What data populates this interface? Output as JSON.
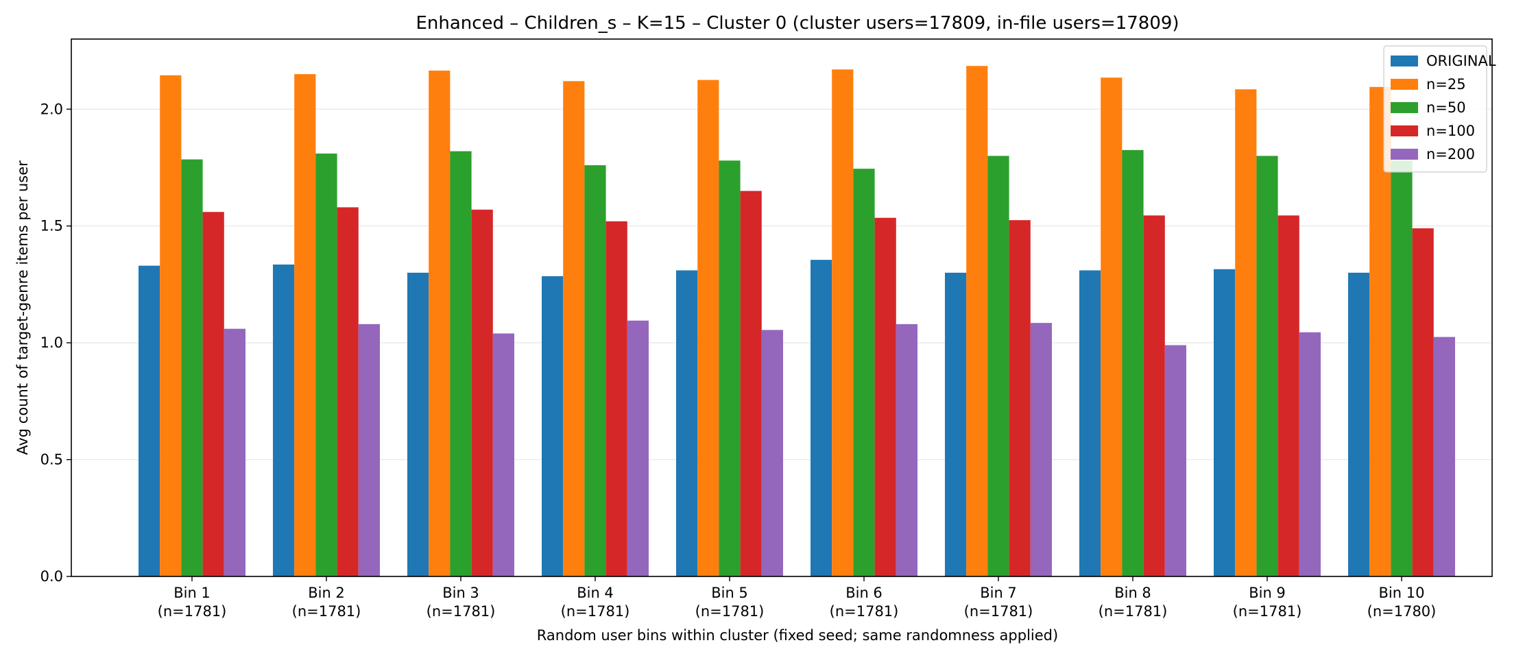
{
  "chart_data": {
    "type": "bar",
    "title": "Enhanced – Children_s – K=15 – Cluster 0 (cluster users=17809, in-file users=17809)",
    "xlabel": "Random user bins within cluster (fixed seed; same randomness applied)",
    "ylabel": "Avg count of target-genre items per user",
    "categories": [
      [
        "Bin 1",
        "(n=1781)"
      ],
      [
        "Bin 2",
        "(n=1781)"
      ],
      [
        "Bin 3",
        "(n=1781)"
      ],
      [
        "Bin 4",
        "(n=1781)"
      ],
      [
        "Bin 5",
        "(n=1781)"
      ],
      [
        "Bin 6",
        "(n=1781)"
      ],
      [
        "Bin 7",
        "(n=1781)"
      ],
      [
        "Bin 8",
        "(n=1781)"
      ],
      [
        "Bin 9",
        "(n=1781)"
      ],
      [
        "Bin 10",
        "(n=1780)"
      ]
    ],
    "ylim": [
      0,
      2.3
    ],
    "yticks": [
      0.0,
      0.5,
      1.0,
      1.5,
      2.0
    ],
    "ytick_labels": [
      "0.0",
      "0.5",
      "1.0",
      "1.5",
      "2.0"
    ],
    "grid": "horizontal",
    "legend_position": "top-right",
    "series": [
      {
        "name": "ORIGINAL",
        "color": "#1f77b4",
        "values": [
          1.33,
          1.335,
          1.3,
          1.285,
          1.31,
          1.355,
          1.3,
          1.31,
          1.315,
          1.3
        ]
      },
      {
        "name": "n=25",
        "color": "#ff7f0e",
        "values": [
          2.145,
          2.15,
          2.165,
          2.12,
          2.125,
          2.17,
          2.185,
          2.135,
          2.085,
          2.095
        ]
      },
      {
        "name": "n=50",
        "color": "#2ca02c",
        "values": [
          1.785,
          1.81,
          1.82,
          1.76,
          1.78,
          1.745,
          1.8,
          1.825,
          1.8,
          1.78
        ]
      },
      {
        "name": "n=100",
        "color": "#d62728",
        "values": [
          1.56,
          1.58,
          1.57,
          1.52,
          1.65,
          1.535,
          1.525,
          1.545,
          1.545,
          1.49
        ]
      },
      {
        "name": "n=200",
        "color": "#9467bd",
        "values": [
          1.06,
          1.08,
          1.04,
          1.095,
          1.055,
          1.08,
          1.085,
          0.99,
          1.045,
          1.025
        ]
      }
    ]
  }
}
